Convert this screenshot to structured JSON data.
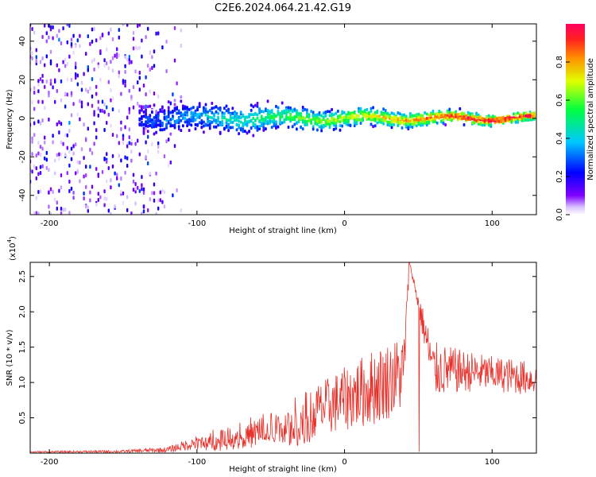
{
  "figure": {
    "title": "C2E6.2024.064.21.42.G19"
  },
  "chart_data": [
    {
      "type": "heatmap",
      "title": "C2E6.2024.064.21.42.G19",
      "xlabel": "Height of straight line (km)",
      "ylabel": "Frequency (Hz)",
      "xlim": [
        -213,
        130
      ],
      "ylim": [
        -50,
        49
      ],
      "xticks": [
        -200,
        -100,
        0,
        100
      ],
      "yticks": [
        40,
        20,
        0,
        -20,
        -40
      ],
      "colorbar": {
        "label": "Normalized spectral amplitude",
        "range": [
          0,
          1
        ],
        "ticks": [
          0.0,
          0.2,
          0.4,
          0.6,
          0.8
        ],
        "colors": [
          "#ffffff",
          "#8000ff",
          "#0000ff",
          "#00c8ff",
          "#00ff40",
          "#e0ff00",
          "#ff8000",
          "#ff0050"
        ]
      },
      "description_points": {
        "noise_region_x": [
          -213,
          -120
        ],
        "ridge_frequency_hz": 0,
        "ridge_spread_hz": [
          {
            "x": -130,
            "spread": 7
          },
          {
            "x": -60,
            "spread": 6
          },
          {
            "x": 0,
            "spread": 4
          },
          {
            "x": 60,
            "spread": 3
          },
          {
            "x": 130,
            "spread": 2
          }
        ]
      }
    },
    {
      "type": "line",
      "xlabel": "Height of straight line (km)",
      "ylabel": "SNR (10 * v/v)",
      "multiplier": "(x10",
      "multiplier_exp": "4",
      "xlim": [
        -213,
        130
      ],
      "ylim": [
        0,
        2.7
      ],
      "xticks": [
        -200,
        -100,
        0,
        100
      ],
      "yticks": [
        0.5,
        1.0,
        1.5,
        2.0,
        2.5
      ],
      "color": "#e8302a",
      "envelope": {
        "x": [
          -213,
          -150,
          -120,
          -100,
          -80,
          -60,
          -40,
          -20,
          0,
          20,
          40,
          44,
          60,
          80,
          100,
          120,
          130
        ],
        "y": [
          0.02,
          0.03,
          0.06,
          0.18,
          0.28,
          0.38,
          0.5,
          0.7,
          0.9,
          1.1,
          1.3,
          2.7,
          1.3,
          1.25,
          1.2,
          1.15,
          1.1
        ],
        "amp": [
          0.01,
          0.02,
          0.04,
          0.1,
          0.15,
          0.2,
          0.28,
          0.38,
          0.45,
          0.55,
          0.55,
          0.0,
          0.4,
          0.3,
          0.25,
          0.25,
          0.2
        ]
      }
    }
  ]
}
